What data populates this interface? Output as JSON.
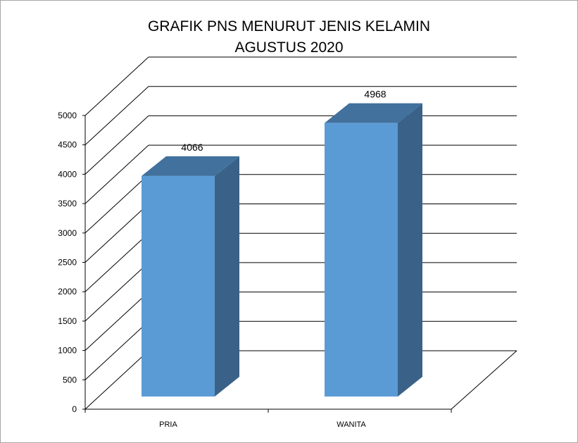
{
  "chart_data": {
    "type": "bar",
    "title": [
      "GRAFIK PNS MENURUT JENIS KELAMIN",
      "AGUSTUS 2020"
    ],
    "categories": [
      "PRIA",
      "WANITA"
    ],
    "values": [
      4066,
      4968
    ],
    "data_labels": [
      "4066",
      "4968"
    ],
    "ylim": [
      0,
      5000
    ],
    "yticks": [
      0,
      500,
      1000,
      1500,
      2000,
      2500,
      3000,
      3500,
      4000,
      4500,
      5000
    ],
    "grid": true,
    "legend": "none",
    "style": "3d-column",
    "colors": {
      "front": "#5b9bd5",
      "top": "#41719c",
      "side": "#3a6288",
      "grid": "#000000"
    }
  }
}
